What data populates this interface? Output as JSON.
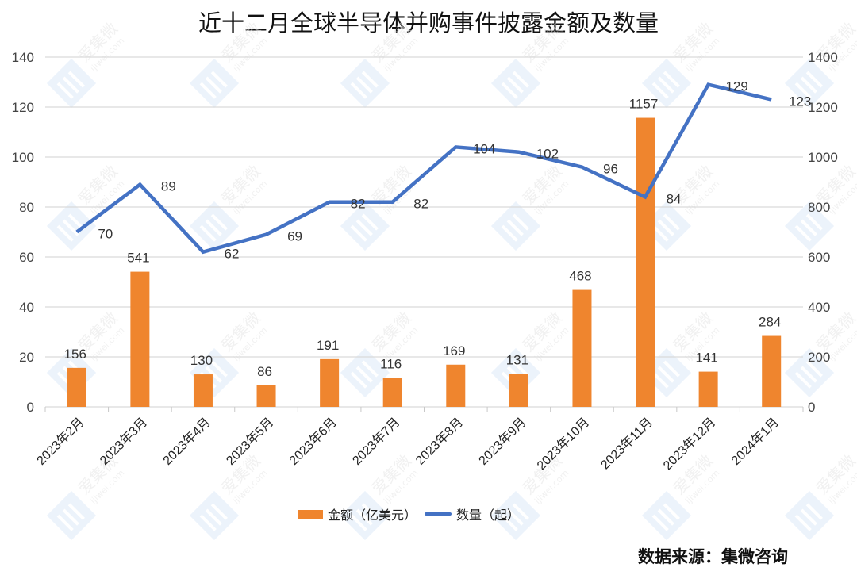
{
  "title": "近十二月全球半导体并购事件披露金额及数量",
  "source": "数据来源：集微咨询",
  "colors": {
    "bar": "#EF852E",
    "line": "#4472C4",
    "grid": "#D9D9D9",
    "watermark": "#DCEAF8"
  },
  "legend": [
    {
      "label": "金额（亿美元）",
      "type": "bar"
    },
    {
      "label": "数量（起）",
      "type": "line"
    }
  ],
  "chart_data": {
    "type": "bar+line",
    "title": "近十二月全球半导体并购事件披露金额及数量",
    "categories": [
      "2023年2月",
      "2023年3月",
      "2023年4月",
      "2023年5月",
      "2023年6月",
      "2023年7月",
      "2023年8月",
      "2023年9月",
      "2023年10月",
      "2023年11月",
      "2023年12月",
      "2024年1月"
    ],
    "series": [
      {
        "name": "金额（亿美元）",
        "type": "bar",
        "axis": "right",
        "values": [
          156,
          541,
          130,
          86,
          191,
          116,
          169,
          131,
          468,
          1157,
          141,
          284
        ]
      },
      {
        "name": "数量（起）",
        "type": "line",
        "axis": "left",
        "values": [
          70,
          89,
          62,
          69,
          82,
          82,
          104,
          102,
          96,
          84,
          129,
          123
        ]
      }
    ],
    "y_left": {
      "min": 0,
      "max": 140,
      "step": 20,
      "ticks": [
        0,
        20,
        40,
        60,
        80,
        100,
        120,
        140
      ]
    },
    "y_right": {
      "min": 0,
      "max": 1400,
      "step": 200,
      "ticks": [
        0,
        200,
        400,
        600,
        800,
        1000,
        1200,
        1400
      ]
    },
    "grid": true,
    "legend_position": "bottom"
  }
}
